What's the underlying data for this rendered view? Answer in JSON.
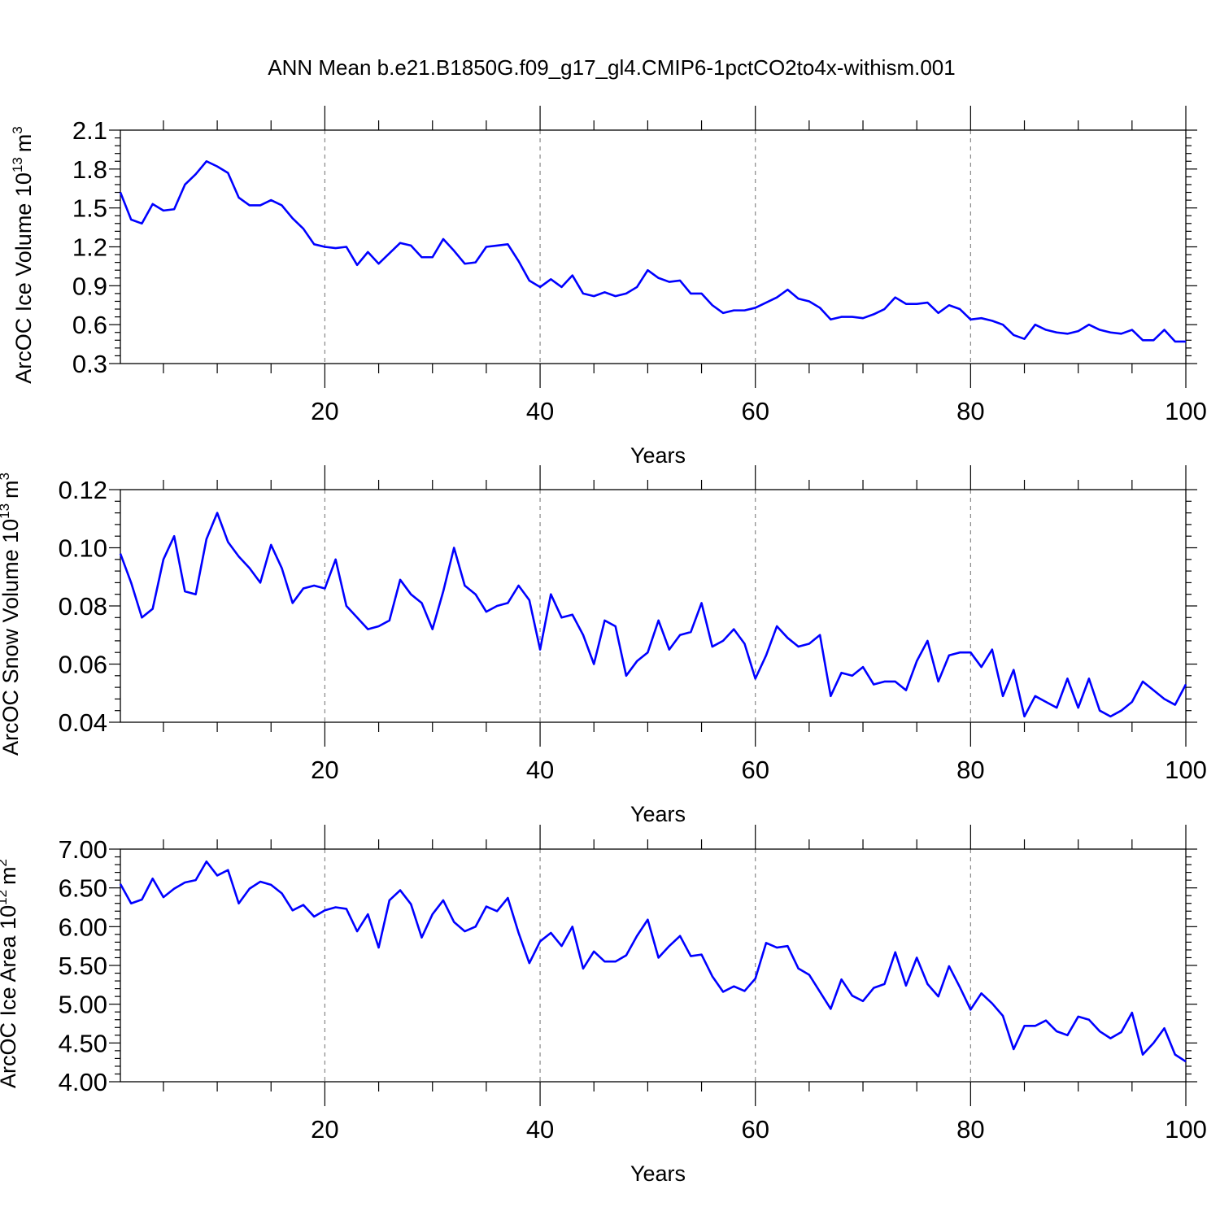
{
  "figure_title": "ANN Mean b.e21.B1850G.f09_g17_gl4.CMIP6-1pctCO2to4x-withism.001",
  "line_color": "#0000ff",
  "chart_data": [
    {
      "type": "line",
      "title": "",
      "xlabel": "Years",
      "ylabel": "ArcOC Ice Volume 10",
      "ylabel_exp": "13",
      "ylabel_unit": "m",
      "ylabel_unit_exp": "3",
      "xlim": [
        1,
        100
      ],
      "ylim": [
        0.3,
        2.1
      ],
      "yticks": [
        0.3,
        0.6,
        0.9,
        1.2,
        1.5,
        1.8,
        2.1
      ],
      "ytick_labels": [
        "0.3",
        "0.6",
        "0.9",
        "1.2",
        "1.5",
        "1.8",
        "2.1"
      ],
      "xticks": [
        20,
        40,
        60,
        80,
        100
      ],
      "xtick_labels": [
        "20",
        "40",
        "60",
        "80",
        "100"
      ],
      "grid": "vertical dashed",
      "x_start": 1,
      "series": [
        {
          "values": [
            1.62,
            1.41,
            1.38,
            1.53,
            1.48,
            1.49,
            1.68,
            1.76,
            1.86,
            1.82,
            1.77,
            1.58,
            1.52,
            1.52,
            1.56,
            1.52,
            1.42,
            1.34,
            1.22,
            1.2,
            1.19,
            1.2,
            1.06,
            1.16,
            1.07,
            1.15,
            1.23,
            1.21,
            1.12,
            1.12,
            1.26,
            1.17,
            1.07,
            1.08,
            1.2,
            1.21,
            1.22,
            1.09,
            0.94,
            0.89,
            0.95,
            0.89,
            0.98,
            0.84,
            0.82,
            0.85,
            0.82,
            0.84,
            0.89,
            1.02,
            0.96,
            0.93,
            0.94,
            0.84,
            0.84,
            0.75,
            0.69,
            0.71,
            0.71,
            0.73,
            0.77,
            0.81,
            0.87,
            0.8,
            0.78,
            0.73,
            0.64,
            0.66,
            0.66,
            0.65,
            0.68,
            0.72,
            0.81,
            0.76,
            0.76,
            0.77,
            0.69,
            0.75,
            0.72,
            0.64,
            0.65,
            0.63,
            0.6,
            0.52,
            0.49,
            0.6,
            0.56,
            0.54,
            0.53,
            0.55,
            0.6,
            0.56,
            0.54,
            0.53,
            0.56,
            0.48,
            0.48,
            0.56,
            0.47,
            0.47
          ]
        }
      ]
    },
    {
      "type": "line",
      "title": "",
      "xlabel": "Years",
      "ylabel": "ArcOC Snow Volume 10",
      "ylabel_exp": "13",
      "ylabel_unit": "m",
      "ylabel_unit_exp": "3",
      "xlim": [
        1,
        100
      ],
      "ylim": [
        0.04,
        0.12
      ],
      "yticks": [
        0.04,
        0.06,
        0.08,
        0.1,
        0.12
      ],
      "ytick_labels": [
        "0.04",
        "0.06",
        "0.08",
        "0.10",
        "0.12"
      ],
      "xticks": [
        20,
        40,
        60,
        80,
        100
      ],
      "xtick_labels": [
        "20",
        "40",
        "60",
        "80",
        "100"
      ],
      "grid": "vertical dashed",
      "x_start": 1,
      "series": [
        {
          "values": [
            0.098,
            0.088,
            0.076,
            0.079,
            0.096,
            0.104,
            0.085,
            0.084,
            0.103,
            0.112,
            0.102,
            0.097,
            0.093,
            0.088,
            0.101,
            0.093,
            0.081,
            0.086,
            0.087,
            0.086,
            0.096,
            0.08,
            0.076,
            0.072,
            0.073,
            0.075,
            0.089,
            0.084,
            0.081,
            0.072,
            0.085,
            0.1,
            0.087,
            0.084,
            0.078,
            0.08,
            0.081,
            0.087,
            0.082,
            0.065,
            0.084,
            0.076,
            0.077,
            0.07,
            0.06,
            0.075,
            0.073,
            0.056,
            0.061,
            0.064,
            0.075,
            0.065,
            0.07,
            0.071,
            0.081,
            0.066,
            0.068,
            0.072,
            0.067,
            0.055,
            0.063,
            0.073,
            0.069,
            0.066,
            0.067,
            0.07,
            0.049,
            0.057,
            0.056,
            0.059,
            0.053,
            0.054,
            0.054,
            0.051,
            0.061,
            0.068,
            0.054,
            0.063,
            0.064,
            0.064,
            0.059,
            0.065,
            0.049,
            0.058,
            0.042,
            0.049,
            0.047,
            0.045,
            0.055,
            0.045,
            0.055,
            0.044,
            0.042,
            0.044,
            0.047,
            0.054,
            0.051,
            0.048,
            0.046,
            0.053
          ]
        }
      ]
    },
    {
      "type": "line",
      "title": "",
      "xlabel": "Years",
      "ylabel": "ArcOC Ice Area 10",
      "ylabel_exp": "12",
      "ylabel_unit": "m",
      "ylabel_unit_exp": "2",
      "xlim": [
        1,
        100
      ],
      "ylim": [
        4.0,
        7.0
      ],
      "yticks": [
        4.0,
        4.5,
        5.0,
        5.5,
        6.0,
        6.5,
        7.0
      ],
      "ytick_labels": [
        "4.00",
        "4.50",
        "5.00",
        "5.50",
        "6.00",
        "6.50",
        "7.00"
      ],
      "xticks": [
        20,
        40,
        60,
        80,
        100
      ],
      "xtick_labels": [
        "20",
        "40",
        "60",
        "80",
        "100"
      ],
      "grid": "vertical dashed",
      "x_start": 1,
      "series": [
        {
          "values": [
            6.55,
            6.3,
            6.35,
            6.62,
            6.38,
            6.49,
            6.57,
            6.6,
            6.84,
            6.66,
            6.73,
            6.3,
            6.49,
            6.58,
            6.54,
            6.43,
            6.21,
            6.28,
            6.13,
            6.21,
            6.25,
            6.23,
            5.94,
            6.16,
            5.73,
            6.34,
            6.47,
            6.29,
            5.86,
            6.16,
            6.34,
            6.06,
            5.94,
            6.0,
            6.26,
            6.2,
            6.37,
            5.92,
            5.53,
            5.81,
            5.92,
            5.75,
            6.0,
            5.46,
            5.68,
            5.55,
            5.55,
            5.63,
            5.88,
            6.09,
            5.6,
            5.75,
            5.88,
            5.62,
            5.64,
            5.36,
            5.16,
            5.23,
            5.17,
            5.33,
            5.79,
            5.73,
            5.75,
            5.46,
            5.38,
            5.16,
            4.94,
            5.32,
            5.11,
            5.04,
            5.21,
            5.26,
            5.67,
            5.24,
            5.6,
            5.26,
            5.1,
            5.49,
            5.22,
            4.93,
            5.14,
            5.01,
            4.85,
            4.42,
            4.72,
            4.72,
            4.79,
            4.65,
            4.6,
            4.84,
            4.8,
            4.65,
            4.56,
            4.64,
            4.89,
            4.35,
            4.5,
            4.69,
            4.35,
            4.26
          ]
        }
      ]
    }
  ]
}
